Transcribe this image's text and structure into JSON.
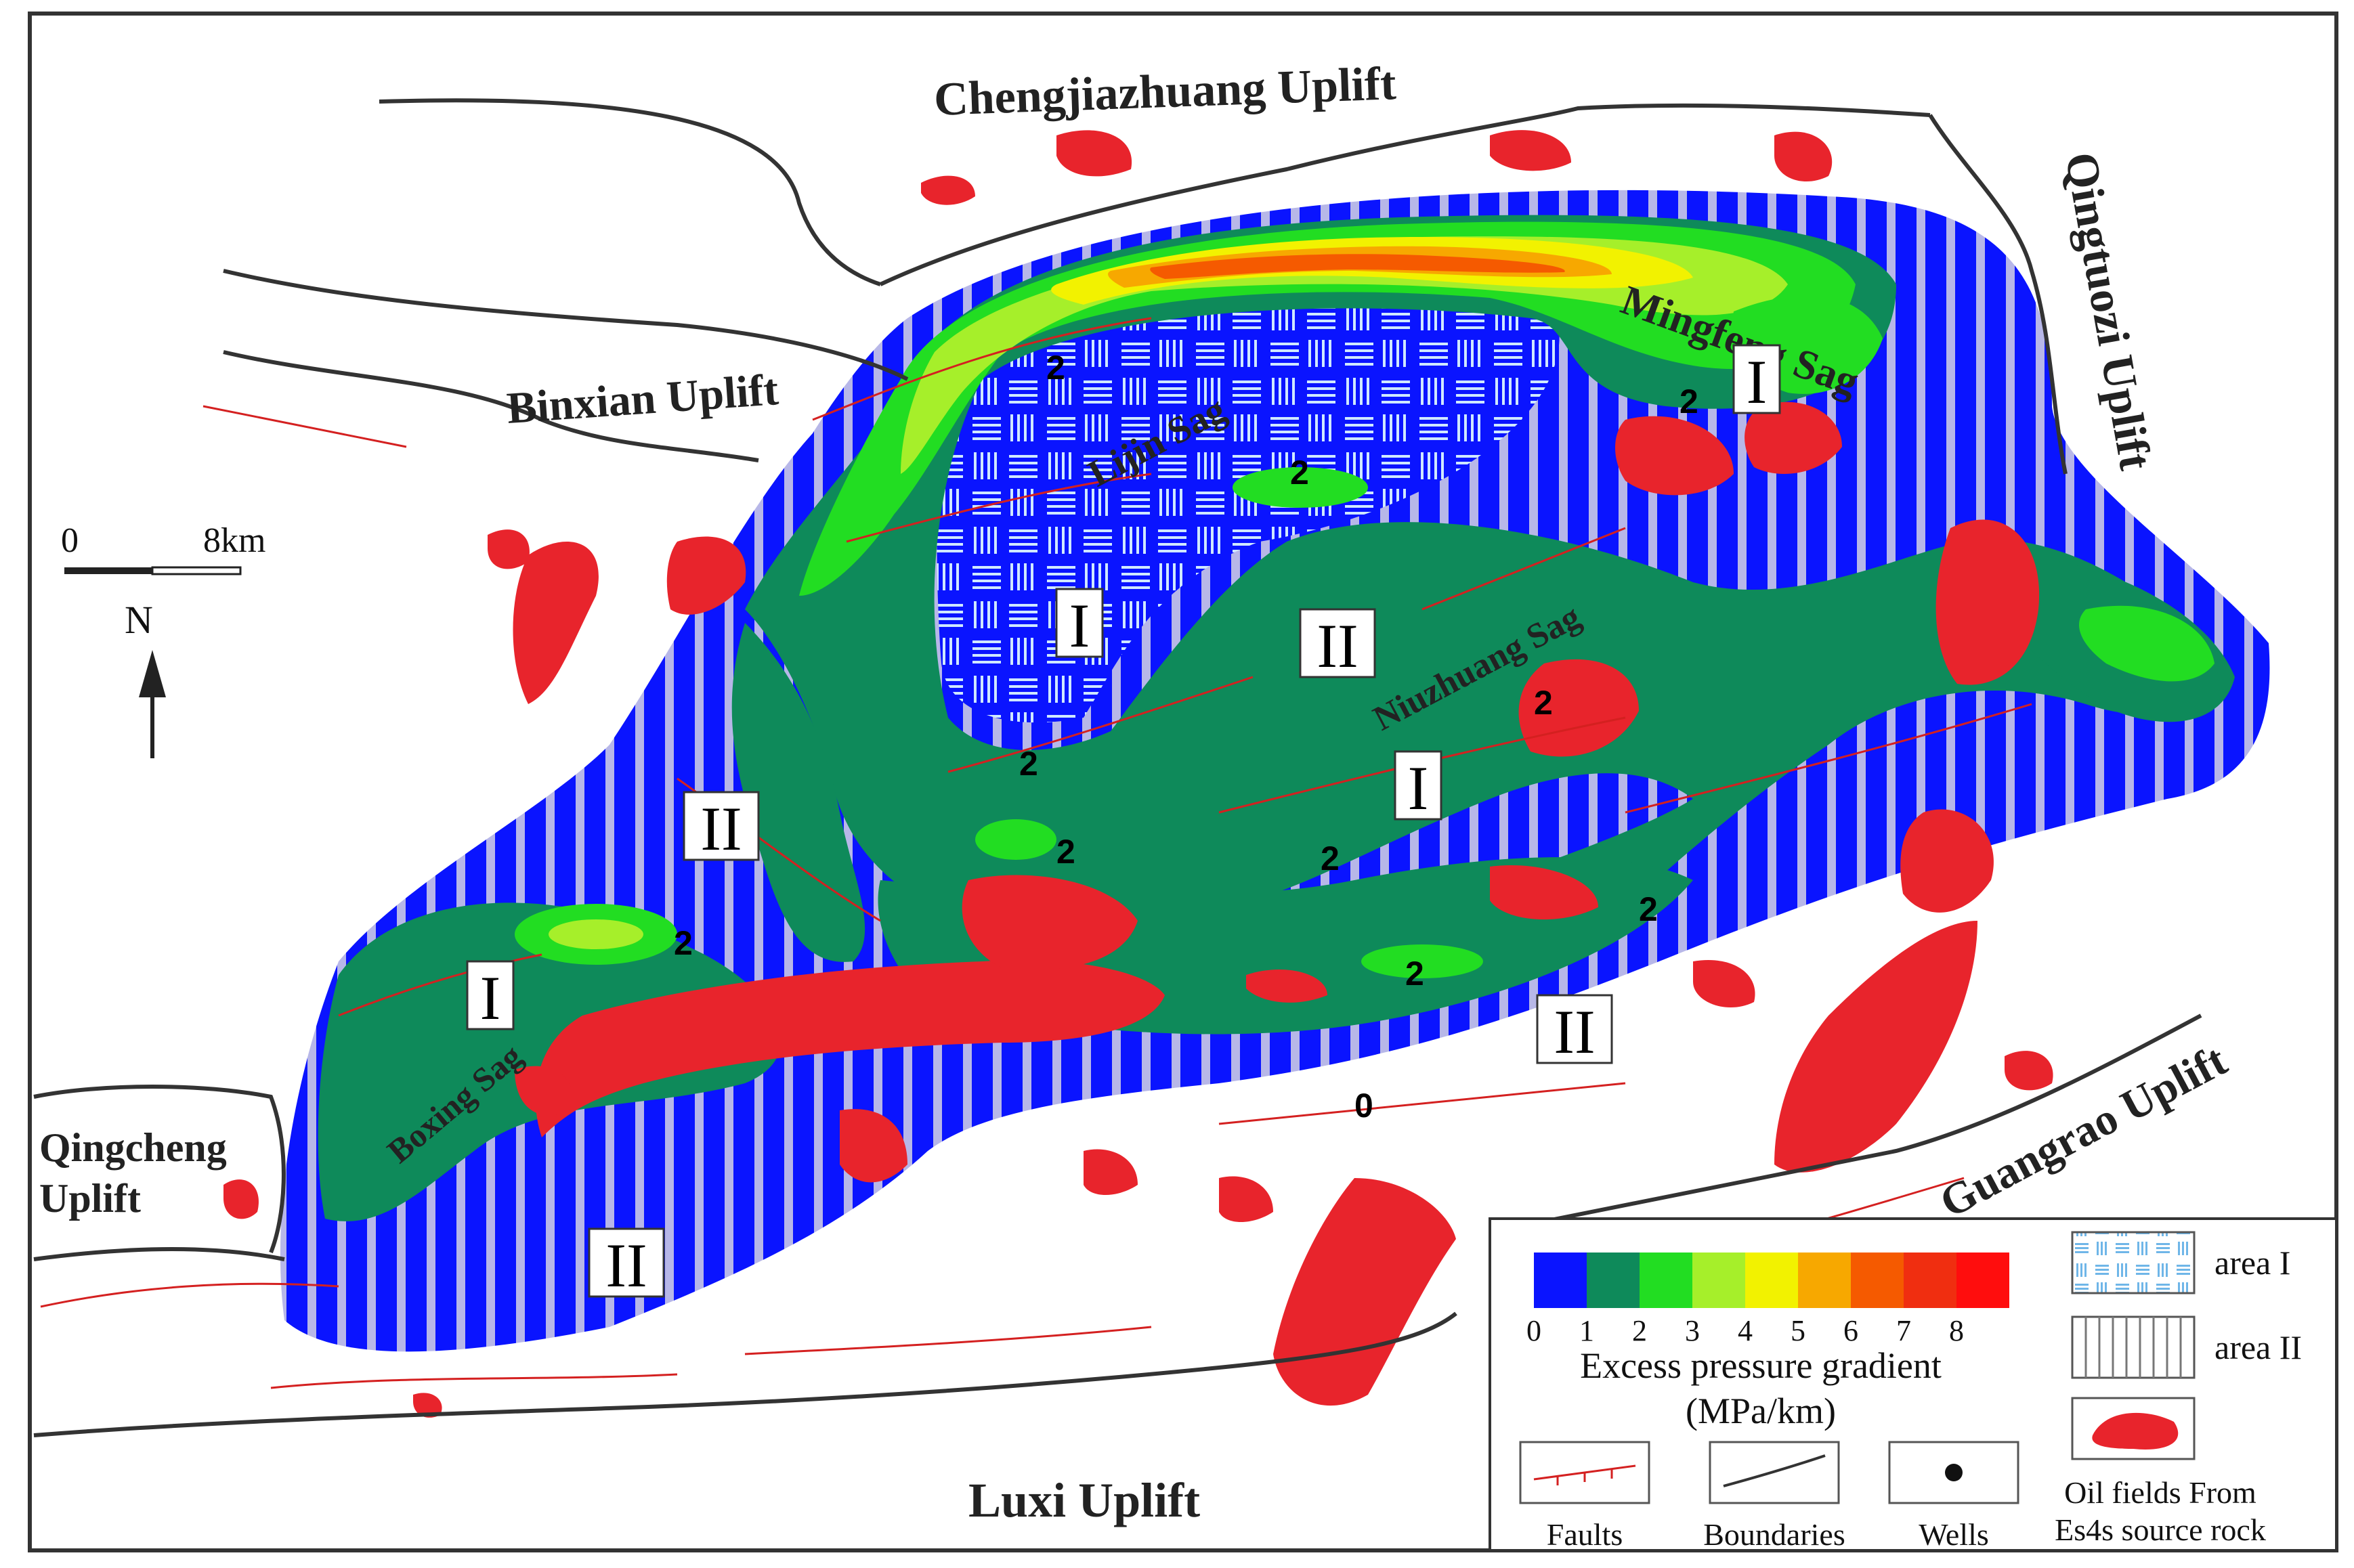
{
  "uplifts": {
    "chengjiazhuang": "Chengjiazhuang  Uplift",
    "binxian": "Binxian Uplift",
    "qingtuozi": "Qingtuozi  Uplift",
    "qingcheng_1": "Qingcheng",
    "qingcheng_2": "Uplift",
    "guangrao": "Guangrao Uplift",
    "luxi": "Luxi Uplift"
  },
  "sags": {
    "mingfeng": "Mingfeng Sag",
    "lijin": "Lijin Sag",
    "niuzhuang": "Niuzhuang Sag",
    "boxing": "Boxing Sag"
  },
  "area_markers": {
    "I": "I",
    "II": "II"
  },
  "contour_labels": [
    "2",
    "2",
    "2",
    "2",
    "2",
    "2",
    "2",
    "2",
    "2",
    "2",
    "0"
  ],
  "scale_bar": {
    "start": "0",
    "end": "8km"
  },
  "north_arrow": "N",
  "legend": {
    "pressure_ticks": [
      "0",
      "1",
      "2",
      "3",
      "4",
      "5",
      "6",
      "7",
      "8"
    ],
    "pressure_colors": [
      "#0a14ff",
      "#0e8a5a",
      "#22dd22",
      "#a6ef2a",
      "#f2f200",
      "#f7a800",
      "#f55a00",
      "#f02e10",
      "#ff0d0d"
    ],
    "pressure_title": "Excess pressure gradient",
    "pressure_unit": "(MPa/km)",
    "area1": "area I",
    "area2": "area II",
    "faults": "Faults",
    "boundaries": "Boundaries",
    "wells": "Wells",
    "oil_line1": "Oil fields From",
    "oil_line2": "Es4s source rock"
  },
  "colors": {
    "low_pressure": "#0a14ff",
    "medium_pressure": "#0e8a5a",
    "oil_fields": "#e8242c",
    "faults": "#d42020"
  }
}
